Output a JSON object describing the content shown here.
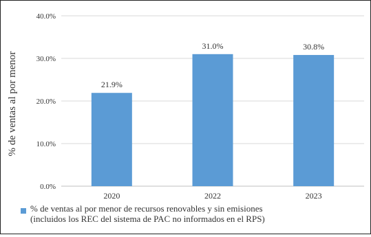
{
  "chart_data": {
    "type": "bar",
    "categories": [
      "2020",
      "2022",
      "2023"
    ],
    "values": [
      21.9,
      31.0,
      30.8
    ],
    "value_labels": [
      "21.9%",
      "31.0%",
      "30.8%"
    ],
    "ylabel": "% de ventas al por menor",
    "xlabel": "",
    "ylim": [
      0,
      40
    ],
    "yticks": [
      0,
      10,
      20,
      30,
      40
    ],
    "ytick_labels": [
      "0.0%",
      "10.0%",
      "20.0%",
      "30.0%",
      "40.0%"
    ],
    "grid": true,
    "legend_position": "bottom",
    "series": [
      {
        "name_lines": [
          "% de ventas al por menor de recursos renovables y sin emisiones",
          "(incluidos los REC del sistema de PAC no informados en el RPS)"
        ],
        "values": [
          21.9,
          31.0,
          30.8
        ],
        "color": "#5b9bd5"
      }
    ]
  }
}
